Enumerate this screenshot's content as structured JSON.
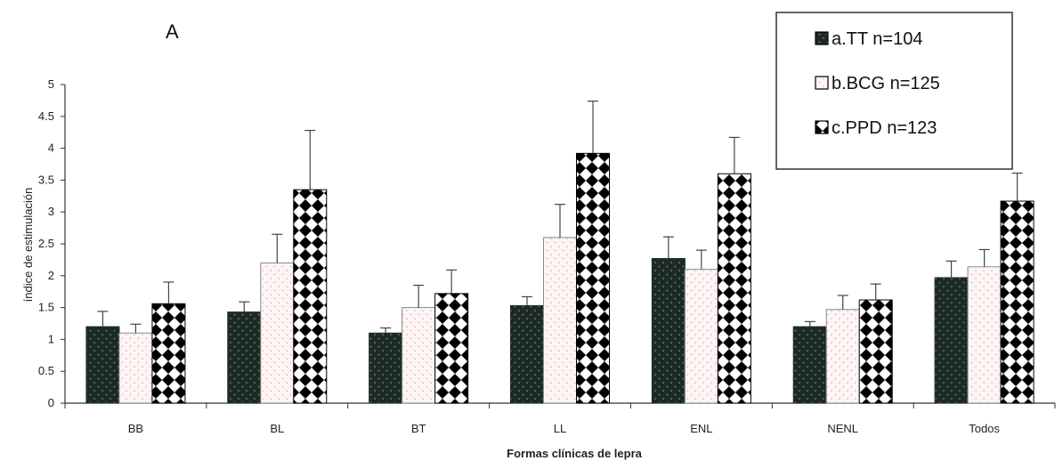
{
  "chart_data": {
    "type": "bar",
    "panel_label": "A",
    "xlabel": "Formas clínicas de lepra",
    "ylabel": "índice de estimulación",
    "ylim": [
      0,
      5
    ],
    "yticks": [
      "0",
      "0.5",
      "1",
      "1.5",
      "2",
      "2.5",
      "3",
      "3.5",
      "4",
      "4.5",
      "5"
    ],
    "ytick_values": [
      0,
      0.5,
      1,
      1.5,
      2,
      2.5,
      3,
      3.5,
      4,
      4.5,
      5
    ],
    "grid": false,
    "legend_position": "top-right",
    "categories": [
      "BB",
      "BL",
      "BT",
      "LL",
      "ENL",
      "NENL",
      "Todos"
    ],
    "series": [
      {
        "name": "a.TT  n=104",
        "pattern": "dark-dots",
        "color": "#1c2a24",
        "values": [
          1.2,
          1.43,
          1.1,
          1.53,
          2.27,
          1.2,
          1.97
        ],
        "errors": [
          0.24,
          0.16,
          0.08,
          0.14,
          0.34,
          0.08,
          0.26
        ]
      },
      {
        "name": "b.BCG n=125",
        "pattern": "light-dots",
        "color": "#fdf2f2",
        "values": [
          1.1,
          2.2,
          1.5,
          2.6,
          2.1,
          1.47,
          2.14
        ],
        "errors": [
          0.14,
          0.45,
          0.35,
          0.52,
          0.3,
          0.22,
          0.27
        ]
      },
      {
        "name": "c.PPD n=123",
        "pattern": "checker-diamonds",
        "color": "#000000",
        "values": [
          1.56,
          3.35,
          1.72,
          3.92,
          3.6,
          1.62,
          3.17
        ],
        "errors": [
          0.34,
          0.93,
          0.37,
          0.82,
          0.57,
          0.25,
          0.44
        ]
      }
    ]
  }
}
